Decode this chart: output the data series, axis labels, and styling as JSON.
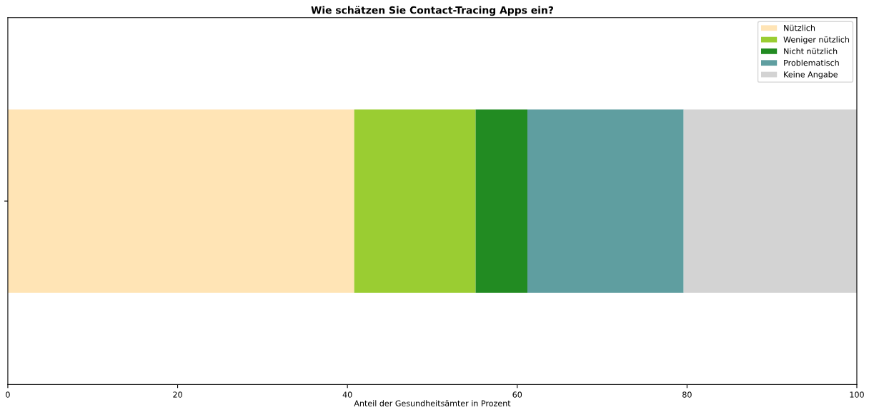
{
  "chart_data": {
    "type": "bar",
    "orientation": "horizontal",
    "stacked": true,
    "title": "Wie schätzen Sie Contact-Tracing Apps ein?",
    "xlabel": "Anteil der Gesundheitsämter in Prozent",
    "categories": [
      null
    ],
    "series": [
      {
        "name": "Nützlich",
        "color": "#ffe4b5",
        "values": [
          40.8
        ]
      },
      {
        "name": "Weniger nützlich",
        "color": "#9acd32",
        "values": [
          14.3
        ]
      },
      {
        "name": "Nicht nützlich",
        "color": "#228b22",
        "values": [
          6.1
        ]
      },
      {
        "name": "Problematisch",
        "color": "#5f9ea0",
        "values": [
          18.4
        ]
      },
      {
        "name": "Keine Angabe",
        "color": "#d3d3d3",
        "values": [
          20.4
        ]
      }
    ],
    "xlim": [
      0,
      100
    ],
    "xticks": [
      0,
      20,
      40,
      60,
      80,
      100
    ],
    "legend": "top right",
    "grid": false
  }
}
